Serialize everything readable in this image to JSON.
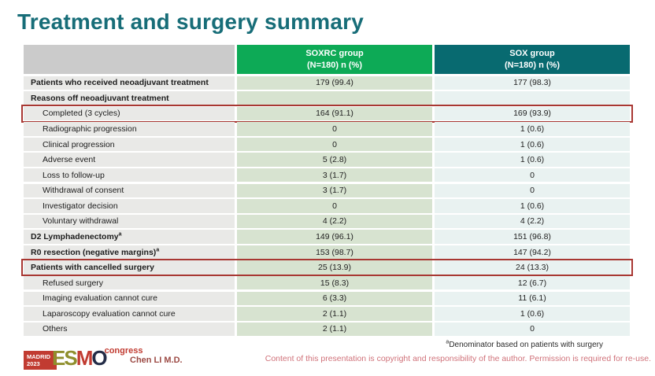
{
  "slide": {
    "title": "Treatment and surgery summary"
  },
  "table": {
    "columns": [
      {
        "line1": "SOXRC group",
        "line2": "(N=180)  n (%)"
      },
      {
        "line1": "SOX group",
        "line2": "(N=180)  n (%)"
      }
    ],
    "rows": [
      {
        "label": "Patients who received neoadjuvant treatment",
        "bold": true,
        "indent": false,
        "soxrc": "179 (99.4)",
        "sox": "177 (98.3)",
        "highlighted": false
      },
      {
        "label": "Reasons off neoadjuvant treatment",
        "bold": true,
        "indent": false,
        "soxrc": "",
        "sox": "",
        "highlighted": false
      },
      {
        "label": "Completed (3 cycles)",
        "bold": false,
        "indent": true,
        "soxrc": "164 (91.1)",
        "sox": "169 (93.9)",
        "highlighted": true
      },
      {
        "label": "Radiographic progression",
        "bold": false,
        "indent": true,
        "soxrc": "0",
        "sox": "1 (0.6)",
        "highlighted": false
      },
      {
        "label": "Clinical progression",
        "bold": false,
        "indent": true,
        "soxrc": "0",
        "sox": "1 (0.6)",
        "highlighted": false
      },
      {
        "label": "Adverse event",
        "bold": false,
        "indent": true,
        "soxrc": "5 (2.8)",
        "sox": "1 (0.6)",
        "highlighted": false
      },
      {
        "label": "Loss to follow-up",
        "bold": false,
        "indent": true,
        "soxrc": "3 (1.7)",
        "sox": "0",
        "highlighted": false
      },
      {
        "label": "Withdrawal of consent",
        "bold": false,
        "indent": true,
        "soxrc": "3 (1.7)",
        "sox": "0",
        "highlighted": false
      },
      {
        "label": "Investigator decision",
        "bold": false,
        "indent": true,
        "soxrc": "0",
        "sox": "1 (0.6)",
        "highlighted": false
      },
      {
        "label": "Voluntary withdrawal",
        "bold": false,
        "indent": true,
        "soxrc": "4 (2.2)",
        "sox": "4 (2.2)",
        "highlighted": false
      },
      {
        "label": "D2 Lymphadenectomy",
        "sup": "a",
        "bold": true,
        "indent": false,
        "soxrc": "149 (96.1)",
        "sox": "151 (96.8)",
        "highlighted": false
      },
      {
        "label": "R0 resection (negative margins)",
        "sup": "a",
        "bold": true,
        "indent": false,
        "soxrc": "153 (98.7)",
        "sox": "147 (94.2)",
        "highlighted": false
      },
      {
        "label": "Patients with cancelled surgery",
        "bold": true,
        "indent": false,
        "soxrc": "25 (13.9)",
        "sox": "24 (13.3)",
        "highlighted": true
      },
      {
        "label": "Refused surgery",
        "bold": false,
        "indent": true,
        "soxrc": "15 (8.3)",
        "sox": "12 (6.7)",
        "highlighted": false
      },
      {
        "label": "Imaging evaluation cannot cure",
        "bold": false,
        "indent": true,
        "soxrc": "6 (3.3)",
        "sox": "11 (6.1)",
        "highlighted": false
      },
      {
        "label": "Laparoscopy evaluation cannot cure",
        "bold": false,
        "indent": true,
        "soxrc": "2 (1.1)",
        "sox": "1 (0.6)",
        "highlighted": false
      },
      {
        "label": "Others",
        "bold": false,
        "indent": true,
        "soxrc": "2 (1.1)",
        "sox": "0",
        "highlighted": false
      }
    ]
  },
  "footer": {
    "footnote_sup": "a",
    "footnote_text": "Denominator based on patients with surgery",
    "copyright": "Content of this presentation is copyright and responsibility of the author. Permission is required for re-use.",
    "presenter": "Chen LI M.D.",
    "logo": {
      "city": "MADRID",
      "year": "2023",
      "esmo_es": "ES",
      "esmo_m": "M",
      "esmo_o": "O",
      "congress": "congress"
    }
  },
  "colors": {
    "title": "#176d78",
    "header_green": "#0daa56",
    "header_teal": "#086a70",
    "soxrc_cell": "#d7e3d0",
    "sox_cell": "#e9f2f1",
    "label_cell": "#e9e9e7",
    "highlight_border": "#a83732",
    "copyright_text": "#d0727a"
  }
}
